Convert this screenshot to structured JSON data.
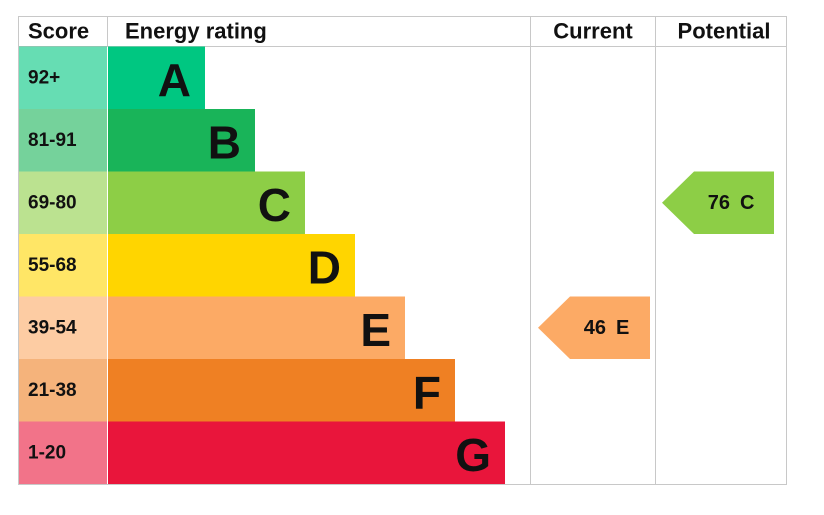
{
  "chart_data": {
    "type": "epc",
    "headers": {
      "score": "Score",
      "rating": "Energy rating",
      "current": "Current",
      "potential": "Potential"
    },
    "bands": [
      {
        "score": "92+",
        "letter": "A",
        "color": "#00c781"
      },
      {
        "score": "81-91",
        "letter": "B",
        "color": "#19b459"
      },
      {
        "score": "69-80",
        "letter": "C",
        "color": "#8dce46"
      },
      {
        "score": "55-68",
        "letter": "D",
        "color": "#ffd500"
      },
      {
        "score": "39-54",
        "letter": "E",
        "color": "#fcaa65"
      },
      {
        "score": "21-38",
        "letter": "F",
        "color": "#ef8023"
      },
      {
        "score": "1-20",
        "letter": "G",
        "color": "#e9153b"
      }
    ],
    "current": {
      "value": 46,
      "letter": "E"
    },
    "potential": {
      "value": 76,
      "letter": "C"
    }
  }
}
